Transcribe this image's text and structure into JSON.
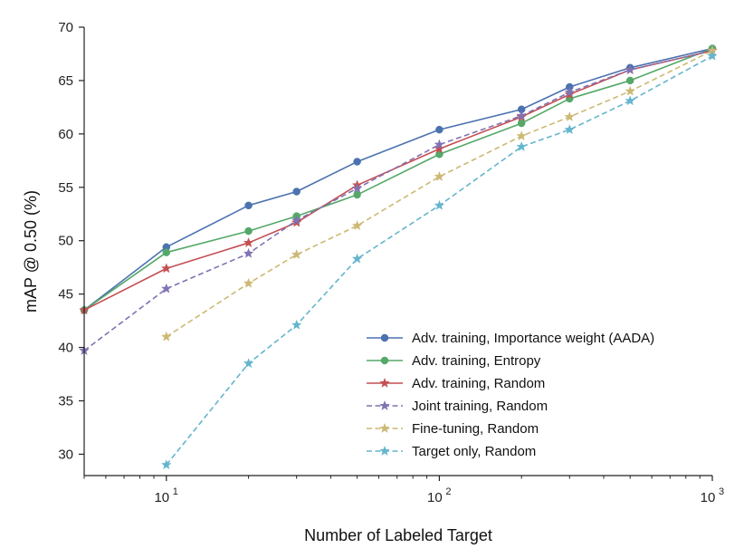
{
  "chart_data": {
    "type": "line",
    "title": "",
    "xlabel": "Number of Labeled Target",
    "ylabel": "mAP @ 0.50 (%)",
    "xscale": "log",
    "xlim": [
      5,
      1000
    ],
    "ylim": [
      28,
      70
    ],
    "yticks": [
      30,
      35,
      40,
      45,
      50,
      55,
      60,
      65,
      70
    ],
    "xticks": [
      {
        "value": 10,
        "base": "10",
        "exp": "1"
      },
      {
        "value": 100,
        "base": "10",
        "exp": "2"
      },
      {
        "value": 1000,
        "base": "10",
        "exp": "3"
      }
    ],
    "legend_position": "lower-right",
    "series": [
      {
        "name": "Adv. training, Importance weight (AADA)",
        "color": "#4c72b0",
        "dash": "solid",
        "marker": "circle",
        "x": [
          5,
          10,
          20,
          30,
          50,
          100,
          200,
          300,
          500,
          1000
        ],
        "y": [
          43.5,
          49.4,
          53.3,
          54.6,
          57.4,
          60.4,
          62.3,
          64.4,
          66.2,
          68.0
        ]
      },
      {
        "name": "Adv. training, Entropy",
        "color": "#55a868",
        "dash": "solid",
        "marker": "circle",
        "x": [
          5,
          10,
          20,
          30,
          50,
          100,
          200,
          300,
          500,
          1000
        ],
        "y": [
          43.5,
          48.9,
          50.9,
          52.3,
          54.3,
          58.1,
          61.0,
          63.3,
          65.0,
          68.0
        ]
      },
      {
        "name": "Adv. training, Random",
        "color": "#c44e52",
        "dash": "solid",
        "marker": "star",
        "x": [
          5,
          10,
          20,
          30,
          50,
          100,
          200,
          300,
          500,
          1000
        ],
        "y": [
          43.5,
          47.4,
          49.8,
          51.7,
          55.2,
          58.6,
          61.6,
          63.7,
          66.0,
          67.8
        ]
      },
      {
        "name": "Joint training, Random",
        "color": "#8172b2",
        "dash": "dashed",
        "marker": "star",
        "x": [
          5,
          10,
          20,
          30,
          50,
          100,
          200,
          300,
          500,
          1000
        ],
        "y": [
          39.7,
          45.5,
          48.8,
          51.9,
          54.9,
          59.0,
          61.7,
          63.9,
          66.0,
          67.8
        ]
      },
      {
        "name": "Fine-tuning, Random",
        "color": "#ccb974",
        "dash": "dashed",
        "marker": "star",
        "x": [
          10,
          20,
          30,
          50,
          100,
          200,
          300,
          500,
          1000
        ],
        "y": [
          41.0,
          46.0,
          48.7,
          51.4,
          56.0,
          59.8,
          61.6,
          64.0,
          67.8
        ]
      },
      {
        "name": "Target only, Random",
        "color": "#64b5cd",
        "dash": "dashed",
        "marker": "star",
        "x": [
          10,
          20,
          30,
          50,
          100,
          200,
          300,
          500,
          1000
        ],
        "y": [
          29.0,
          38.5,
          42.1,
          48.3,
          53.3,
          58.8,
          60.4,
          63.1,
          67.3
        ]
      }
    ]
  }
}
